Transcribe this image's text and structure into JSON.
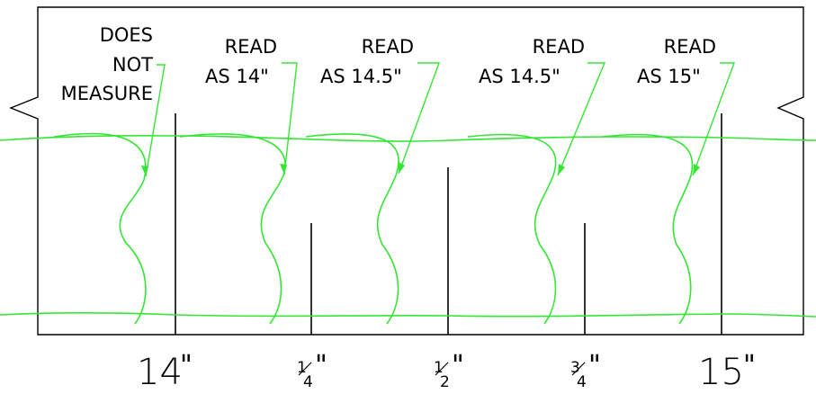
{
  "annotations": [
    {
      "line1": "DOES",
      "line2": "NOT",
      "line3": "MEASURE"
    },
    {
      "line1": "READ",
      "line2": "AS 14\""
    },
    {
      "line1": "READ",
      "line2": "AS 14.5\""
    },
    {
      "line1": "READ",
      "line2": "AS 14.5\""
    },
    {
      "line1": "READ",
      "line2": "AS 15\""
    }
  ],
  "scale": {
    "major_left": "14",
    "major_right": "15",
    "quarter_num": "1",
    "quarter_den": "4",
    "half_num": "1",
    "half_den": "2",
    "three_quarter_num": "3",
    "three_quarter_den": "4",
    "inch_mark": "\""
  },
  "colors": {
    "outline": "#000000",
    "cable": "#33e633",
    "arrow": "#33e633"
  }
}
